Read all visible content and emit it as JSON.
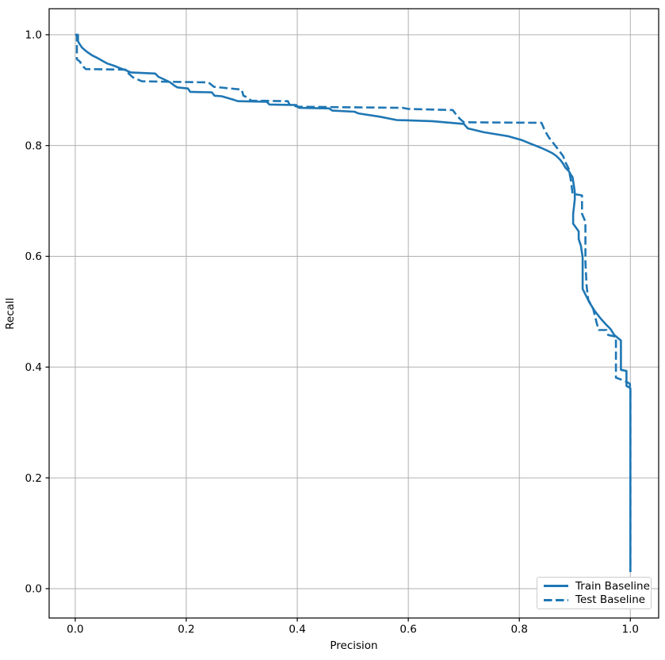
{
  "chart_data": {
    "type": "line",
    "title": "",
    "xlabel": "Precision",
    "ylabel": "Recall",
    "xlim": [
      -0.047,
      1.051
    ],
    "ylim": [
      -0.053,
      1.047
    ],
    "xticks": [
      0.0,
      0.2,
      0.4,
      0.6,
      0.8,
      1.0
    ],
    "yticks": [
      0.0,
      0.2,
      0.4,
      0.6,
      0.8,
      1.0
    ],
    "grid": true,
    "colors": {
      "line": "#1f77b4",
      "grid": "#b0b0b0",
      "spine": "#000000",
      "text": "#000000",
      "legend_border": "#cccccc"
    },
    "legend": {
      "position": "lower right",
      "labels": [
        "Train Baseline",
        "Test Baseline"
      ]
    },
    "series": [
      {
        "name": "Train Baseline",
        "style": "solid",
        "color": "#1f77b4",
        "linewidth": 2.6,
        "points": [
          [
            0.0,
            1.0
          ],
          [
            0.005,
            1.0
          ],
          [
            0.005,
            0.988
          ],
          [
            0.008,
            0.983
          ],
          [
            0.012,
            0.977
          ],
          [
            0.02,
            0.97
          ],
          [
            0.03,
            0.963
          ],
          [
            0.04,
            0.958
          ],
          [
            0.049,
            0.953
          ],
          [
            0.058,
            0.948
          ],
          [
            0.07,
            0.944
          ],
          [
            0.08,
            0.94
          ],
          [
            0.091,
            0.936
          ],
          [
            0.1,
            0.932
          ],
          [
            0.144,
            0.93
          ],
          [
            0.15,
            0.924
          ],
          [
            0.161,
            0.919
          ],
          [
            0.171,
            0.914
          ],
          [
            0.179,
            0.908
          ],
          [
            0.184,
            0.905
          ],
          [
            0.203,
            0.903
          ],
          [
            0.207,
            0.897
          ],
          [
            0.246,
            0.896
          ],
          [
            0.251,
            0.89
          ],
          [
            0.264,
            0.889
          ],
          [
            0.287,
            0.882
          ],
          [
            0.293,
            0.88
          ],
          [
            0.345,
            0.879
          ],
          [
            0.35,
            0.874
          ],
          [
            0.398,
            0.873
          ],
          [
            0.403,
            0.868
          ],
          [
            0.457,
            0.867
          ],
          [
            0.463,
            0.863
          ],
          [
            0.503,
            0.861
          ],
          [
            0.51,
            0.858
          ],
          [
            0.549,
            0.852
          ],
          [
            0.579,
            0.846
          ],
          [
            0.643,
            0.844
          ],
          [
            0.7,
            0.839
          ],
          [
            0.707,
            0.831
          ],
          [
            0.736,
            0.824
          ],
          [
            0.779,
            0.817
          ],
          [
            0.804,
            0.81
          ],
          [
            0.821,
            0.803
          ],
          [
            0.839,
            0.796
          ],
          [
            0.85,
            0.791
          ],
          [
            0.86,
            0.786
          ],
          [
            0.867,
            0.781
          ],
          [
            0.874,
            0.774
          ],
          [
            0.879,
            0.767
          ],
          [
            0.883,
            0.76
          ],
          [
            0.889,
            0.754
          ],
          [
            0.893,
            0.747
          ],
          [
            0.896,
            0.743
          ],
          [
            0.9,
            0.716
          ],
          [
            0.9,
            0.703
          ],
          [
            0.897,
            0.676
          ],
          [
            0.897,
            0.659
          ],
          [
            0.907,
            0.645
          ],
          [
            0.907,
            0.631
          ],
          [
            0.911,
            0.619
          ],
          [
            0.914,
            0.598
          ],
          [
            0.914,
            0.541
          ],
          [
            0.92,
            0.529
          ],
          [
            0.926,
            0.517
          ],
          [
            0.936,
            0.501
          ],
          [
            0.947,
            0.487
          ],
          [
            0.957,
            0.476
          ],
          [
            0.964,
            0.469
          ],
          [
            0.971,
            0.458
          ],
          [
            0.983,
            0.448
          ],
          [
            0.983,
            0.395
          ],
          [
            0.993,
            0.393
          ],
          [
            0.993,
            0.366
          ],
          [
            1.0,
            0.362
          ],
          [
            1.0,
            0.03
          ]
        ]
      },
      {
        "name": "Test Baseline",
        "style": "dashed",
        "color": "#1f77b4",
        "linewidth": 2.6,
        "dash": [
          10.5,
          4.6
        ],
        "points": [
          [
            0.0,
            1.0
          ],
          [
            0.003,
            1.0
          ],
          [
            0.003,
            0.956
          ],
          [
            0.009,
            0.951
          ],
          [
            0.011,
            0.946
          ],
          [
            0.019,
            0.938
          ],
          [
            0.093,
            0.937
          ],
          [
            0.096,
            0.93
          ],
          [
            0.104,
            0.923
          ],
          [
            0.12,
            0.916
          ],
          [
            0.24,
            0.914
          ],
          [
            0.25,
            0.906
          ],
          [
            0.3,
            0.901
          ],
          [
            0.303,
            0.89
          ],
          [
            0.31,
            0.887
          ],
          [
            0.317,
            0.881
          ],
          [
            0.383,
            0.88
          ],
          [
            0.386,
            0.874
          ],
          [
            0.4,
            0.87
          ],
          [
            0.59,
            0.868
          ],
          [
            0.6,
            0.866
          ],
          [
            0.68,
            0.864
          ],
          [
            0.686,
            0.856
          ],
          [
            0.693,
            0.848
          ],
          [
            0.7,
            0.842
          ],
          [
            0.84,
            0.841
          ],
          [
            0.846,
            0.827
          ],
          [
            0.853,
            0.815
          ],
          [
            0.86,
            0.806
          ],
          [
            0.867,
            0.797
          ],
          [
            0.873,
            0.789
          ],
          [
            0.879,
            0.781
          ],
          [
            0.883,
            0.77
          ],
          [
            0.889,
            0.758
          ],
          [
            0.893,
            0.737
          ],
          [
            0.896,
            0.713
          ],
          [
            0.913,
            0.71
          ],
          [
            0.913,
            0.677
          ],
          [
            0.919,
            0.662
          ],
          [
            0.919,
            0.591
          ],
          [
            0.921,
            0.548
          ],
          [
            0.924,
            0.522
          ],
          [
            0.933,
            0.505
          ],
          [
            0.94,
            0.477
          ],
          [
            0.943,
            0.467
          ],
          [
            0.957,
            0.467
          ],
          [
            0.96,
            0.458
          ],
          [
            0.974,
            0.455
          ],
          [
            0.974,
            0.381
          ],
          [
            0.99,
            0.375
          ],
          [
            0.999,
            0.37
          ],
          [
            1.0,
            0.36
          ],
          [
            1.0,
            0.03
          ]
        ]
      }
    ]
  }
}
